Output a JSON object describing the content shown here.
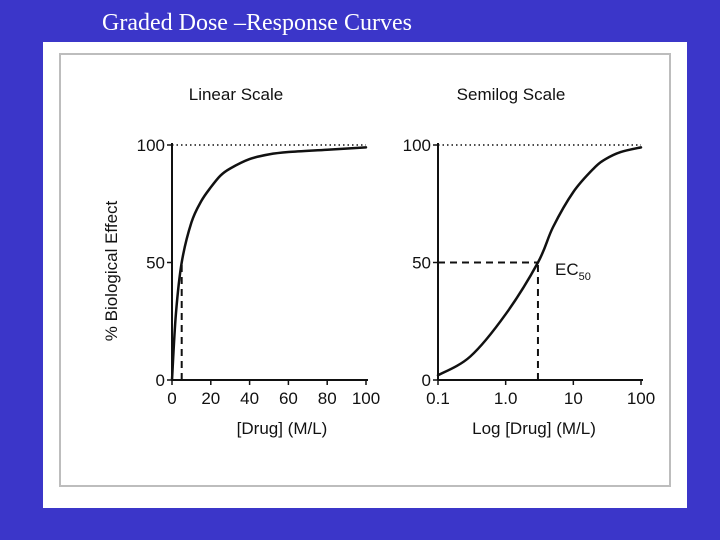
{
  "slide": {
    "title": "Graded Dose –Response Curves"
  },
  "colors": {
    "background": "#3b36c9",
    "panel": "#ffffff",
    "ink": "#111111",
    "frame": "#bdbdbd"
  },
  "chart_data": [
    {
      "type": "line",
      "title": "Linear Scale",
      "xlabel": "[Drug] (M/L)",
      "ylabel": "% Biological Effect",
      "xlim": [
        0,
        100
      ],
      "ylim": [
        0,
        100
      ],
      "xticks": [
        "0",
        "20",
        "40",
        "60",
        "80",
        "100"
      ],
      "xtick_values": [
        0,
        20,
        40,
        60,
        80,
        100
      ],
      "yticks": [
        "0",
        "50",
        "100"
      ],
      "ytick_values": [
        0,
        50,
        100
      ],
      "series": [
        {
          "name": "response",
          "x": [
            0,
            2,
            5,
            10,
            15,
            20,
            25,
            30,
            40,
            50,
            60,
            80,
            100
          ],
          "y": [
            0,
            28,
            50,
            67,
            76,
            82,
            87,
            90,
            94,
            96,
            97,
            98,
            99
          ]
        }
      ],
      "reference_lines": [
        {
          "style": "dotted",
          "orientation": "horizontal",
          "y": 100
        },
        {
          "style": "dashed",
          "orientation": "vertical",
          "x": 5,
          "from_y": 0,
          "to_y": 50
        }
      ]
    },
    {
      "type": "line",
      "title": "Semilog Scale",
      "xlabel": "Log [Drug] (M/L)",
      "ylabel": "",
      "xscale": "log",
      "xlim": [
        0.1,
        100
      ],
      "ylim": [
        0,
        100
      ],
      "xticks": [
        "0.1",
        "1.0",
        "10",
        "100"
      ],
      "xtick_values": [
        0.1,
        1,
        10,
        100
      ],
      "yticks": [
        "0",
        "50",
        "100"
      ],
      "ytick_values": [
        0,
        50,
        100
      ],
      "series": [
        {
          "name": "response",
          "x": [
            0.1,
            0.3,
            1,
            3,
            5,
            10,
            20,
            30,
            50,
            100
          ],
          "y": [
            2,
            10,
            28,
            50,
            65,
            80,
            90,
            94,
            97,
            99
          ]
        }
      ],
      "reference_lines": [
        {
          "style": "dotted",
          "orientation": "horizontal",
          "y": 100
        },
        {
          "style": "dashed",
          "orientation": "horizontal",
          "y": 50,
          "from_x": 0.1,
          "to_x": 3
        },
        {
          "style": "dashed",
          "orientation": "vertical",
          "x": 3,
          "from_y": 0,
          "to_y": 50
        }
      ],
      "annotations": [
        {
          "text": "EC",
          "subscript": "50",
          "x": 3,
          "y": 50
        }
      ]
    }
  ]
}
